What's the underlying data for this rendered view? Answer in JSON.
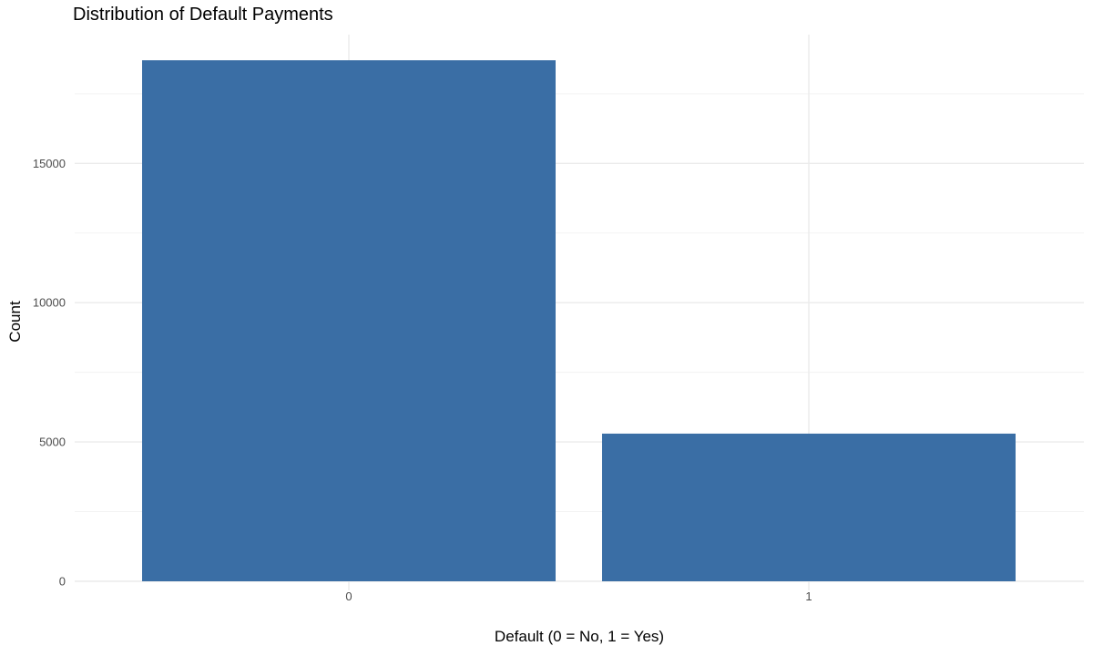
{
  "chart_data": {
    "type": "bar",
    "title": "Distribution of Default Payments",
    "xlabel": "Default (0 = No, 1 = Yes)",
    "ylabel": "Count",
    "categories": [
      "0",
      "1"
    ],
    "values": [
      18700,
      5300
    ],
    "ylim": [
      0,
      19600
    ],
    "yticks": [
      0,
      5000,
      10000,
      15000
    ],
    "ytick_labels": [
      "0",
      "5000",
      "10000",
      "15000"
    ],
    "grid": true,
    "legend": "none",
    "colors": {
      "bar": "#3A6EA5",
      "grid_major": "#EBEBEB",
      "grid_minor": "#F3F3F3",
      "tick_text": "#4D4D4D",
      "background": "#FFFFFF"
    }
  }
}
